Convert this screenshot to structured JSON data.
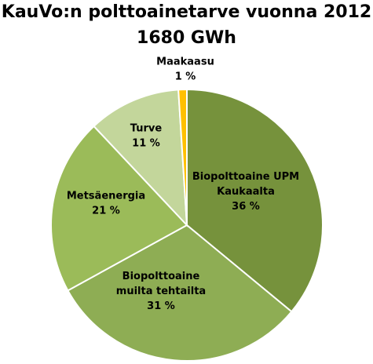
{
  "chart_data": {
    "type": "pie",
    "title": "KauVo:n polttoainetarve vuonna 2012",
    "subtitle": "1680 GWh",
    "start_angle_deg": 0,
    "direction": "clockwise",
    "slices": [
      {
        "label_lines": [
          "Biopolttoaine UPM",
          "Kaukaalta"
        ],
        "value": 36,
        "value_label": "36 %",
        "color": "#76923c"
      },
      {
        "label_lines": [
          "Biopolttoaine",
          "muilta tehtailta"
        ],
        "value": 31,
        "value_label": "31 %",
        "color": "#8ead54"
      },
      {
        "label_lines": [
          "Metsäenergia"
        ],
        "value": 21,
        "value_label": "21 %",
        "color": "#9bbb59"
      },
      {
        "label_lines": [
          "Turve"
        ],
        "value": 11,
        "value_label": "11 %",
        "color": "#c3d69b"
      },
      {
        "label_lines": [
          "Maakaasu"
        ],
        "value": 1,
        "value_label": "1 %",
        "color": "#ffc000"
      }
    ]
  }
}
